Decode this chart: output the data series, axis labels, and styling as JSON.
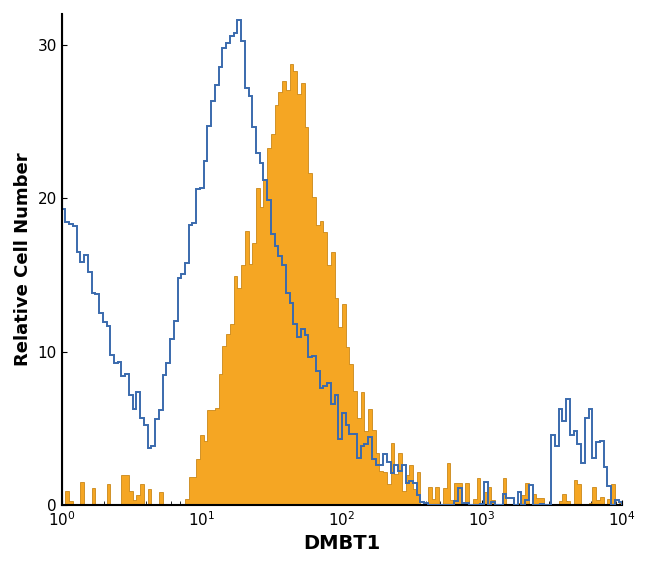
{
  "title": "",
  "xlabel": "DMBT1",
  "ylabel": "Relative Cell Number",
  "xlim": [
    1,
    10000
  ],
  "ylim": [
    0,
    32
  ],
  "yticks": [
    0,
    10,
    20,
    30
  ],
  "background_color": "#ffffff",
  "blue_color": "#3A6AAD",
  "orange_color": "#F5A623",
  "orange_edge_color": "#C07800",
  "blue_linewidth": 1.4,
  "blue_seed": 42,
  "orange_seed": 123,
  "n_bins": 150
}
